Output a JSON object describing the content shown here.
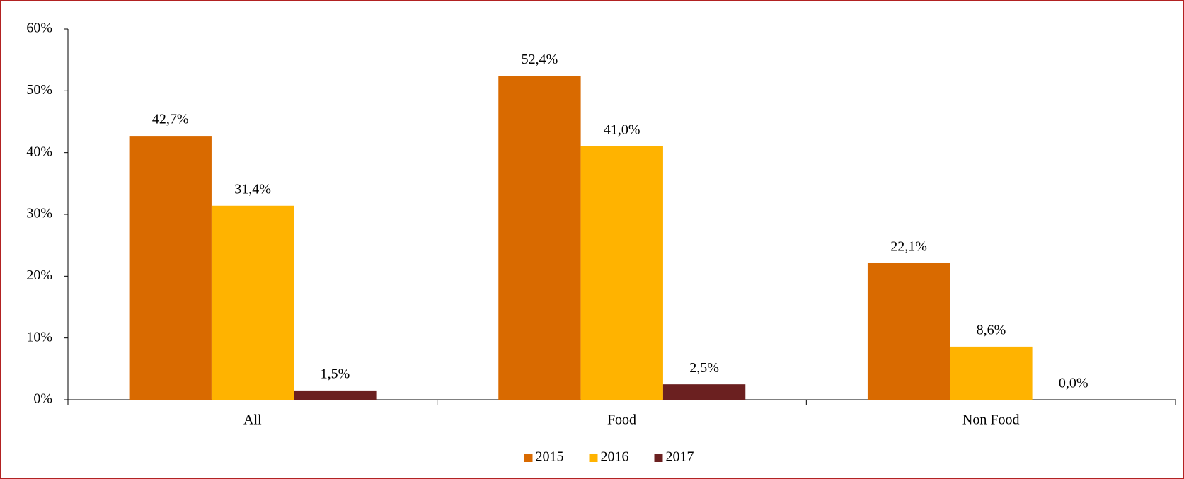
{
  "chart_data": {
    "type": "bar",
    "categories": [
      "All",
      "Food",
      "Non Food"
    ],
    "series": [
      {
        "name": "2015",
        "color": "#d96a00",
        "values": [
          42.7,
          52.4,
          22.1
        ],
        "value_labels": [
          "42,7%",
          "52,4%",
          "22,1%"
        ]
      },
      {
        "name": "2016",
        "color": "#ffb300",
        "values": [
          31.4,
          41.0,
          8.6
        ],
        "value_labels": [
          "31,4%",
          "41,0%",
          "8,6%"
        ]
      },
      {
        "name": "2017",
        "color": "#6b2020",
        "values": [
          1.5,
          2.5,
          0.0
        ],
        "value_labels": [
          "1,5%",
          "2,5%",
          "0,0%"
        ]
      }
    ],
    "ylim": [
      0,
      60
    ],
    "yticks": [
      {
        "value": 0,
        "label": "0%"
      },
      {
        "value": 10,
        "label": "10%"
      },
      {
        "value": 20,
        "label": "20%"
      },
      {
        "value": 30,
        "label": "30%"
      },
      {
        "value": 40,
        "label": "40%"
      },
      {
        "value": 50,
        "label": "50%"
      },
      {
        "value": 60,
        "label": "60%"
      }
    ],
    "legend": "bottom"
  }
}
